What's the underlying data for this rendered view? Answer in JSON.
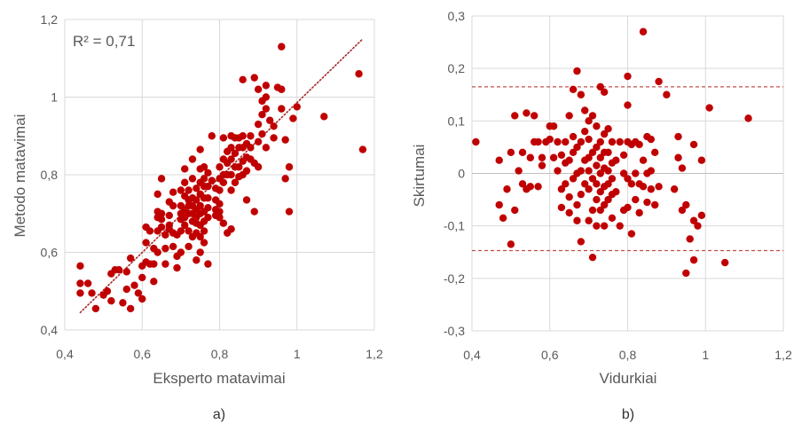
{
  "colors": {
    "marker": "#C00000",
    "grid": "#D9D9D9",
    "trend": "#A52A2A",
    "text": "#595959"
  },
  "chart_data": [
    {
      "type": "scatter",
      "caption": "a)",
      "xlabel": "Eksperto matavimai",
      "ylabel": "Metodo matavimai",
      "annotation": "R² = 0,71",
      "xlim": [
        0.4,
        1.2
      ],
      "ylim": [
        0.4,
        1.2
      ],
      "x_ticks": [
        0.4,
        0.6,
        0.8,
        1.0,
        1.2
      ],
      "x_tick_labels": [
        "0,4",
        "0,6",
        "0,8",
        "1",
        "1,2"
      ],
      "y_ticks": [
        0.4,
        0.6,
        0.8,
        1.0,
        1.2
      ],
      "y_tick_labels": [
        "0,4",
        "0,6",
        "0,8",
        "1",
        "1,2"
      ],
      "trendline": {
        "x": [
          0.44,
          1.17
        ],
        "y": [
          0.445,
          1.15
        ],
        "style": "dotted"
      },
      "points": [
        [
          0.44,
          0.565
        ],
        [
          0.44,
          0.52
        ],
        [
          0.44,
          0.495
        ],
        [
          0.46,
          0.52
        ],
        [
          0.47,
          0.495
        ],
        [
          0.48,
          0.455
        ],
        [
          0.5,
          0.49
        ],
        [
          0.51,
          0.5
        ],
        [
          0.52,
          0.545
        ],
        [
          0.52,
          0.475
        ],
        [
          0.53,
          0.555
        ],
        [
          0.54,
          0.555
        ],
        [
          0.55,
          0.47
        ],
        [
          0.56,
          0.505
        ],
        [
          0.56,
          0.55
        ],
        [
          0.57,
          0.455
        ],
        [
          0.57,
          0.585
        ],
        [
          0.58,
          0.515
        ],
        [
          0.59,
          0.495
        ],
        [
          0.6,
          0.565
        ],
        [
          0.6,
          0.535
        ],
        [
          0.6,
          0.48
        ],
        [
          0.61,
          0.665
        ],
        [
          0.61,
          0.625
        ],
        [
          0.61,
          0.575
        ],
        [
          0.62,
          0.655
        ],
        [
          0.62,
          0.57
        ],
        [
          0.63,
          0.61
        ],
        [
          0.63,
          0.57
        ],
        [
          0.63,
          0.525
        ],
        [
          0.64,
          0.75
        ],
        [
          0.64,
          0.705
        ],
        [
          0.64,
          0.69
        ],
        [
          0.64,
          0.655
        ],
        [
          0.64,
          0.6
        ],
        [
          0.65,
          0.79
        ],
        [
          0.65,
          0.7
        ],
        [
          0.65,
          0.685
        ],
        [
          0.65,
          0.665
        ],
        [
          0.66,
          0.645
        ],
        [
          0.66,
          0.61
        ],
        [
          0.66,
          0.57
        ],
        [
          0.67,
          0.73
        ],
        [
          0.67,
          0.695
        ],
        [
          0.67,
          0.67
        ],
        [
          0.67,
          0.66
        ],
        [
          0.68,
          0.755
        ],
        [
          0.68,
          0.72
        ],
        [
          0.68,
          0.65
        ],
        [
          0.68,
          0.615
        ],
        [
          0.69,
          0.645
        ],
        [
          0.69,
          0.59
        ],
        [
          0.69,
          0.56
        ],
        [
          0.7,
          0.76
        ],
        [
          0.7,
          0.72
        ],
        [
          0.7,
          0.7
        ],
        [
          0.7,
          0.685
        ],
        [
          0.7,
          0.655
        ],
        [
          0.7,
          0.6
        ],
        [
          0.71,
          0.815
        ],
        [
          0.71,
          0.78
        ],
        [
          0.71,
          0.745
        ],
        [
          0.71,
          0.71
        ],
        [
          0.71,
          0.69
        ],
        [
          0.71,
          0.67
        ],
        [
          0.72,
          0.76
        ],
        [
          0.72,
          0.735
        ],
        [
          0.72,
          0.72
        ],
        [
          0.72,
          0.7
        ],
        [
          0.72,
          0.655
        ],
        [
          0.72,
          0.615
        ],
        [
          0.73,
          0.84
        ],
        [
          0.73,
          0.79
        ],
        [
          0.73,
          0.74
        ],
        [
          0.73,
          0.72
        ],
        [
          0.73,
          0.7
        ],
        [
          0.73,
          0.68
        ],
        [
          0.73,
          0.64
        ],
        [
          0.74,
          0.765
        ],
        [
          0.74,
          0.735
        ],
        [
          0.74,
          0.71
        ],
        [
          0.74,
          0.69
        ],
        [
          0.74,
          0.675
        ],
        [
          0.74,
          0.65
        ],
        [
          0.74,
          0.58
        ],
        [
          0.75,
          0.865
        ],
        [
          0.75,
          0.815
        ],
        [
          0.75,
          0.78
        ],
        [
          0.75,
          0.75
        ],
        [
          0.75,
          0.72
        ],
        [
          0.75,
          0.7
        ],
        [
          0.75,
          0.67
        ],
        [
          0.75,
          0.64
        ],
        [
          0.75,
          0.6
        ],
        [
          0.76,
          0.82
        ],
        [
          0.76,
          0.79
        ],
        [
          0.76,
          0.77
        ],
        [
          0.76,
          0.74
        ],
        [
          0.76,
          0.705
        ],
        [
          0.76,
          0.68
        ],
        [
          0.76,
          0.655
        ],
        [
          0.76,
          0.625
        ],
        [
          0.77,
          0.805
        ],
        [
          0.77,
          0.77
        ],
        [
          0.77,
          0.74
        ],
        [
          0.77,
          0.715
        ],
        [
          0.77,
          0.69
        ],
        [
          0.77,
          0.57
        ],
        [
          0.78,
          0.9
        ],
        [
          0.78,
          0.785
        ],
        [
          0.79,
          0.765
        ],
        [
          0.79,
          0.735
        ],
        [
          0.79,
          0.71
        ],
        [
          0.79,
          0.695
        ],
        [
          0.8,
          0.82
        ],
        [
          0.8,
          0.79
        ],
        [
          0.8,
          0.76
        ],
        [
          0.8,
          0.725
        ],
        [
          0.8,
          0.705
        ],
        [
          0.8,
          0.69
        ],
        [
          0.81,
          0.895
        ],
        [
          0.81,
          0.84
        ],
        [
          0.81,
          0.8
        ],
        [
          0.81,
          0.78
        ],
        [
          0.81,
          0.675
        ],
        [
          0.82,
          0.86
        ],
        [
          0.82,
          0.83
        ],
        [
          0.82,
          0.8
        ],
        [
          0.82,
          0.65
        ],
        [
          0.83,
          0.9
        ],
        [
          0.83,
          0.87
        ],
        [
          0.83,
          0.84
        ],
        [
          0.83,
          0.8
        ],
        [
          0.83,
          0.76
        ],
        [
          0.83,
          0.66
        ],
        [
          0.84,
          0.895
        ],
        [
          0.84,
          0.855
        ],
        [
          0.84,
          0.82
        ],
        [
          0.84,
          0.78
        ],
        [
          0.85,
          0.895
        ],
        [
          0.85,
          0.87
        ],
        [
          0.85,
          0.82
        ],
        [
          0.85,
          0.795
        ],
        [
          0.86,
          1.045
        ],
        [
          0.86,
          0.9
        ],
        [
          0.86,
          0.87
        ],
        [
          0.86,
          0.835
        ],
        [
          0.86,
          0.8
        ],
        [
          0.87,
          0.88
        ],
        [
          0.87,
          0.845
        ],
        [
          0.87,
          0.81
        ],
        [
          0.87,
          0.735
        ],
        [
          0.88,
          0.9
        ],
        [
          0.88,
          0.87
        ],
        [
          0.88,
          0.84
        ],
        [
          0.89,
          1.05
        ],
        [
          0.89,
          0.83
        ],
        [
          0.89,
          0.705
        ],
        [
          0.9,
          1.02
        ],
        [
          0.9,
          0.93
        ],
        [
          0.9,
          0.885
        ],
        [
          0.9,
          0.82
        ],
        [
          0.91,
          0.99
        ],
        [
          0.91,
          0.955
        ],
        [
          0.91,
          0.905
        ],
        [
          0.92,
          1.03
        ],
        [
          0.92,
          1.0
        ],
        [
          0.92,
          0.97
        ],
        [
          0.92,
          0.87
        ],
        [
          0.93,
          0.94
        ],
        [
          0.94,
          0.925
        ],
        [
          0.94,
          0.895
        ],
        [
          0.95,
          1.025
        ],
        [
          0.96,
          1.02
        ],
        [
          0.96,
          0.97
        ],
        [
          0.96,
          1.13
        ],
        [
          0.97,
          0.89
        ],
        [
          0.97,
          0.79
        ],
        [
          0.98,
          0.82
        ],
        [
          0.98,
          0.705
        ],
        [
          0.99,
          0.945
        ],
        [
          1.0,
          0.975
        ],
        [
          1.07,
          0.95
        ],
        [
          1.16,
          1.06
        ],
        [
          1.17,
          0.865
        ]
      ]
    },
    {
      "type": "scatter",
      "caption": "b)",
      "xlabel": "Vidurkiai",
      "ylabel": "Skirtumai",
      "xlim": [
        0.4,
        1.2
      ],
      "ylim": [
        -0.3,
        0.3
      ],
      "x_ticks": [
        0.4,
        0.6,
        0.8,
        1.0,
        1.2
      ],
      "x_tick_labels": [
        "0,4",
        "0,6",
        "0,8",
        "1",
        "1,2"
      ],
      "y_ticks": [
        -0.3,
        -0.2,
        -0.1,
        0,
        0.1,
        0.2,
        0.3
      ],
      "y_tick_labels": [
        "-0,3",
        "-0,2",
        "-0,1",
        "0",
        "0,1",
        "0,2",
        "0,3"
      ],
      "reference_lines": [
        0.165,
        -0.147
      ],
      "points": [
        [
          0.41,
          0.06
        ],
        [
          0.47,
          0.025
        ],
        [
          0.47,
          -0.06
        ],
        [
          0.48,
          -0.085
        ],
        [
          0.49,
          -0.03
        ],
        [
          0.5,
          0.04
        ],
        [
          0.5,
          -0.135
        ],
        [
          0.51,
          0.11
        ],
        [
          0.51,
          -0.07
        ],
        [
          0.52,
          0.005
        ],
        [
          0.53,
          0.04
        ],
        [
          0.53,
          -0.02
        ],
        [
          0.54,
          0.115
        ],
        [
          0.54,
          -0.03
        ],
        [
          0.55,
          0.03
        ],
        [
          0.55,
          -0.025
        ],
        [
          0.56,
          0.11
        ],
        [
          0.56,
          0.06
        ],
        [
          0.57,
          0.06
        ],
        [
          0.57,
          -0.025
        ],
        [
          0.58,
          0.03
        ],
        [
          0.58,
          0.015
        ],
        [
          0.59,
          0.06
        ],
        [
          0.6,
          0.065
        ],
        [
          0.6,
          0.09
        ],
        [
          0.61,
          0.09
        ],
        [
          0.61,
          0.03
        ],
        [
          0.62,
          0.06
        ],
        [
          0.62,
          0.005
        ],
        [
          0.63,
          0.035
        ],
        [
          0.63,
          -0.03
        ],
        [
          0.63,
          -0.065
        ],
        [
          0.64,
          0.06
        ],
        [
          0.64,
          0.02
        ],
        [
          0.64,
          -0.02
        ],
        [
          0.65,
          0.025
        ],
        [
          0.65,
          0.11
        ],
        [
          0.65,
          -0.045
        ],
        [
          0.65,
          -0.075
        ],
        [
          0.66,
          0.16
        ],
        [
          0.66,
          0.07
        ],
        [
          0.66,
          0.04
        ],
        [
          0.66,
          -0.01
        ],
        [
          0.67,
          0.195
        ],
        [
          0.67,
          0.05
        ],
        [
          0.67,
          0.0
        ],
        [
          0.67,
          -0.06
        ],
        [
          0.67,
          -0.09
        ],
        [
          0.68,
          0.15
        ],
        [
          0.68,
          0.06
        ],
        [
          0.68,
          0.005
        ],
        [
          0.68,
          -0.04
        ],
        [
          0.68,
          -0.13
        ],
        [
          0.69,
          0.12
        ],
        [
          0.69,
          0.08
        ],
        [
          0.69,
          0.025
        ],
        [
          0.69,
          -0.02
        ],
        [
          0.7,
          0.1
        ],
        [
          0.7,
          0.065
        ],
        [
          0.7,
          0.03
        ],
        [
          0.7,
          0.005
        ],
        [
          0.7,
          -0.03
        ],
        [
          0.7,
          -0.09
        ],
        [
          0.71,
          0.11
        ],
        [
          0.71,
          0.04
        ],
        [
          0.71,
          -0.01
        ],
        [
          0.71,
          -0.07
        ],
        [
          0.71,
          -0.16
        ],
        [
          0.72,
          0.09
        ],
        [
          0.72,
          0.05
        ],
        [
          0.72,
          0.015
        ],
        [
          0.72,
          -0.02
        ],
        [
          0.72,
          -0.05
        ],
        [
          0.72,
          -0.1
        ],
        [
          0.73,
          0.165
        ],
        [
          0.73,
          0.06
        ],
        [
          0.73,
          0.03
        ],
        [
          0.73,
          0.0
        ],
        [
          0.73,
          -0.035
        ],
        [
          0.73,
          -0.07
        ],
        [
          0.74,
          0.155
        ],
        [
          0.74,
          0.075
        ],
        [
          0.74,
          0.04
        ],
        [
          0.74,
          0.01
        ],
        [
          0.74,
          -0.025
        ],
        [
          0.74,
          -0.06
        ],
        [
          0.74,
          -0.1
        ],
        [
          0.75,
          0.085
        ],
        [
          0.75,
          0.04
        ],
        [
          0.75,
          0.005
        ],
        [
          0.75,
          -0.02
        ],
        [
          0.75,
          -0.05
        ],
        [
          0.76,
          0.06
        ],
        [
          0.76,
          0.02
        ],
        [
          0.76,
          -0.01
        ],
        [
          0.76,
          -0.04
        ],
        [
          0.76,
          -0.085
        ],
        [
          0.77,
          0.025
        ],
        [
          0.77,
          -0.035
        ],
        [
          0.78,
          0.06
        ],
        [
          0.78,
          -0.1
        ],
        [
          0.79,
          0.035
        ],
        [
          0.79,
          0.0
        ],
        [
          0.79,
          -0.07
        ],
        [
          0.8,
          0.185
        ],
        [
          0.8,
          0.13
        ],
        [
          0.8,
          0.06
        ],
        [
          0.8,
          -0.01
        ],
        [
          0.8,
          -0.065
        ],
        [
          0.81,
          0.055
        ],
        [
          0.81,
          -0.02
        ],
        [
          0.81,
          -0.115
        ],
        [
          0.82,
          0.06
        ],
        [
          0.82,
          0.0
        ],
        [
          0.82,
          -0.05
        ],
        [
          0.83,
          0.055
        ],
        [
          0.83,
          -0.02
        ],
        [
          0.83,
          -0.075
        ],
        [
          0.84,
          0.27
        ],
        [
          0.84,
          0.025
        ],
        [
          0.84,
          -0.025
        ],
        [
          0.85,
          0.07
        ],
        [
          0.85,
          0.0
        ],
        [
          0.85,
          -0.055
        ],
        [
          0.86,
          0.065
        ],
        [
          0.86,
          0.005
        ],
        [
          0.86,
          -0.03
        ],
        [
          0.87,
          -0.06
        ],
        [
          0.87,
          0.04
        ],
        [
          0.88,
          0.175
        ],
        [
          0.88,
          -0.025
        ],
        [
          0.9,
          0.15
        ],
        [
          0.92,
          -0.03
        ],
        [
          0.93,
          0.07
        ],
        [
          0.93,
          0.03
        ],
        [
          0.94,
          0.01
        ],
        [
          0.94,
          -0.07
        ],
        [
          0.95,
          -0.19
        ],
        [
          0.95,
          -0.06
        ],
        [
          0.96,
          -0.125
        ],
        [
          0.97,
          -0.09
        ],
        [
          0.97,
          0.055
        ],
        [
          0.97,
          -0.165
        ],
        [
          0.98,
          -0.1
        ],
        [
          0.99,
          0.025
        ],
        [
          0.99,
          -0.08
        ],
        [
          1.01,
          0.125
        ],
        [
          1.05,
          -0.17
        ],
        [
          1.11,
          0.105
        ]
      ]
    }
  ]
}
